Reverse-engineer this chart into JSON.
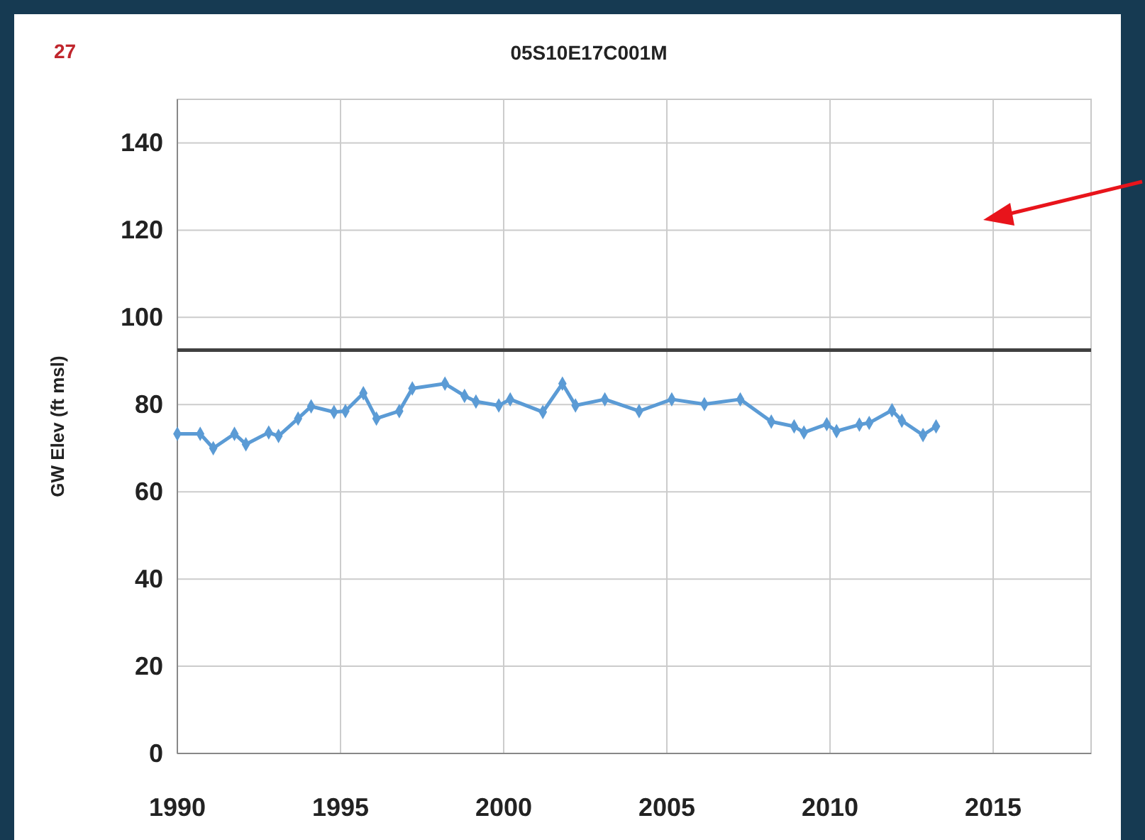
{
  "chart_data": {
    "type": "line",
    "title": "05S10E17C001M",
    "ylabel": "GW Elev (ft msl)",
    "annotations": [
      "27"
    ],
    "x": [
      1990.0,
      1990.7,
      1991.1,
      1991.75,
      1992.1,
      1992.8,
      1993.1,
      1993.7,
      1994.1,
      1994.8,
      1995.15,
      1995.7,
      1996.1,
      1996.8,
      1997.2,
      1998.2,
      1998.8,
      1999.15,
      1999.85,
      2000.2,
      2001.2,
      2001.8,
      2002.2,
      2003.1,
      2004.15,
      2005.15,
      2006.15,
      2007.25,
      2008.2,
      2008.9,
      2009.2,
      2009.9,
      2010.2,
      2010.9,
      2011.2,
      2011.9,
      2012.2,
      2012.85,
      2013.25
    ],
    "series": [
      {
        "color": "#5b9bd5",
        "values": [
          73.3,
          73.3,
          70,
          73.3,
          70.9,
          73.6,
          72.8,
          76.8,
          79.6,
          78.3,
          78.5,
          82.6,
          76.8,
          78.5,
          83.7,
          84.8,
          82,
          80.7,
          79.8,
          81.2,
          78.3,
          84.8,
          79.8,
          81.2,
          78.5,
          81.2,
          80.1,
          81.2,
          76.1,
          75,
          73.6,
          75.5,
          73.9,
          75.4,
          75.8,
          78.7,
          76.3,
          73,
          75
        ]
      }
    ],
    "xlim": [
      1990,
      2018
    ],
    "xticks": [
      1990,
      1995,
      2000,
      2005,
      2010,
      2015
    ],
    "ylim": [
      0,
      150
    ],
    "yticks": [
      0,
      20,
      40,
      60,
      80,
      100,
      120,
      140
    ],
    "ref_lines": [
      {
        "axis": "y",
        "value": 92.5,
        "color": "#404040"
      }
    ],
    "grid": true,
    "marker": "diamond",
    "line_style": "solid"
  }
}
